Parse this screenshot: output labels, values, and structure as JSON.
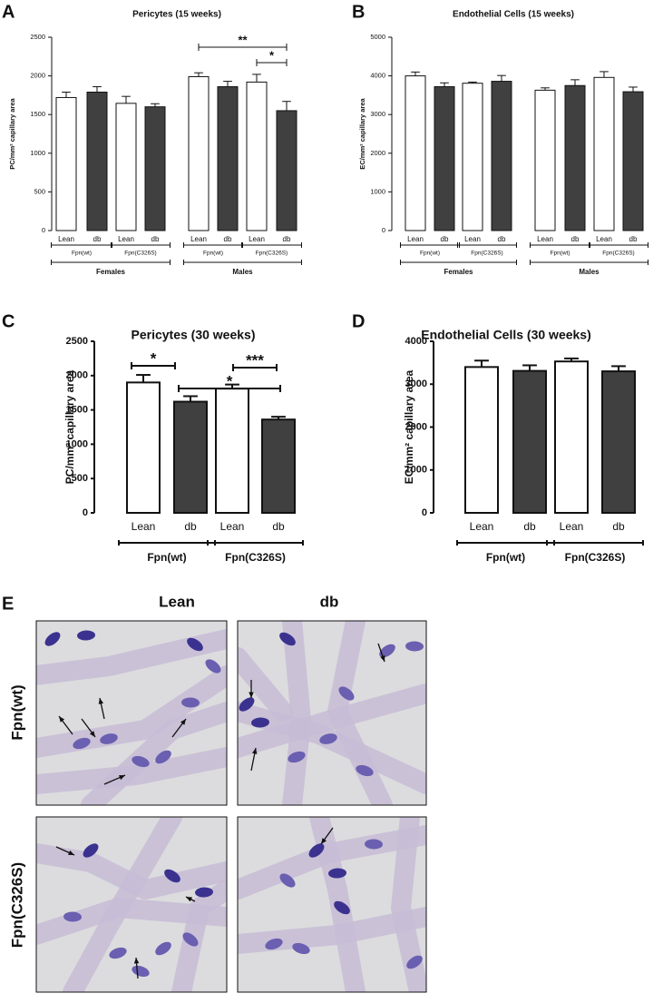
{
  "panels": [
    "A",
    "B",
    "C",
    "D",
    "E"
  ],
  "chart_data": [
    {
      "type": "bar",
      "title": "Pericytes (15 weeks)",
      "y_label": "PC/mm² capillary area",
      "categories": [
        "Lean",
        "db",
        "Lean",
        "db",
        "Lean",
        "db",
        "Lean",
        "db"
      ],
      "groups": [
        "Fpn(wt)",
        "Fpn(C326S)",
        "Fpn(wt)",
        "Fpn(C326S)"
      ],
      "supergroups": [
        "Females",
        "Males"
      ],
      "values": [
        1720,
        1790,
        1645,
        1600,
        1990,
        1860,
        1920,
        1550
      ],
      "errors": [
        70,
        70,
        90,
        40,
        50,
        70,
        100,
        120
      ],
      "bar_colors": [
        "#ffffff",
        "#404040",
        "#ffffff",
        "#404040",
        "#ffffff",
        "#404040",
        "#ffffff",
        "#404040"
      ],
      "ylim": [
        0,
        2500
      ],
      "yticks": [
        0,
        500,
        1000,
        1500,
        2000,
        2500
      ],
      "annotations": [
        "**",
        "*"
      ]
    },
    {
      "type": "bar",
      "title": "Endothelial  Cells (15 weeks)",
      "y_label": "EC/mm² capillary area",
      "categories": [
        "Lean",
        "db",
        "Lean",
        "db",
        "Lean",
        "db",
        "Lean",
        "db"
      ],
      "groups": [
        "Fpn(wt)",
        "Fpn(C326S)",
        "Fpn(wt)",
        "Fpn(C326S)"
      ],
      "supergroups": [
        "Females",
        "Males"
      ],
      "values": [
        4000,
        3720,
        3810,
        3860,
        3630,
        3750,
        3960,
        3590
      ],
      "errors": [
        100,
        100,
        30,
        150,
        60,
        150,
        150,
        120
      ],
      "bar_colors": [
        "#ffffff",
        "#404040",
        "#ffffff",
        "#404040",
        "#ffffff",
        "#404040",
        "#ffffff",
        "#404040"
      ],
      "ylim": [
        0,
        5000
      ],
      "yticks": [
        0,
        1000,
        2000,
        3000,
        4000,
        5000
      ],
      "annotations": []
    },
    {
      "type": "bar",
      "title": "Pericytes (30 weeks)",
      "y_label": "PC/mm² capillary area",
      "categories": [
        "Lean",
        "db",
        "Lean",
        "db"
      ],
      "groups": [
        "Fpn(wt)",
        "Fpn(C326S)"
      ],
      "values": [
        1900,
        1620,
        1810,
        1360
      ],
      "errors": [
        110,
        80,
        60,
        40
      ],
      "bar_colors": [
        "#ffffff",
        "#404040",
        "#ffffff",
        "#404040"
      ],
      "ylim": [
        0,
        2500
      ],
      "yticks": [
        0,
        500,
        1000,
        1500,
        2000,
        2500
      ],
      "annotations": [
        "*",
        "***",
        "*"
      ]
    },
    {
      "type": "bar",
      "title": "Endothelial Cells (30 weeks)",
      "y_label": "EC/mm² capillary area",
      "categories": [
        "Lean",
        "db",
        "Lean",
        "db"
      ],
      "groups": [
        "Fpn(wt)",
        "Fpn(C326S)"
      ],
      "values": [
        3400,
        3310,
        3530,
        3300
      ],
      "errors": [
        150,
        130,
        70,
        120
      ],
      "bar_colors": [
        "#ffffff",
        "#404040",
        "#ffffff",
        "#404040"
      ],
      "ylim": [
        0,
        4000
      ],
      "yticks": [
        0,
        1000,
        2000,
        3000,
        4000
      ],
      "annotations": []
    }
  ],
  "micrographs": {
    "columns": [
      "Lean",
      "db"
    ],
    "rows": [
      "Fpn(wt)",
      "Fpn(C326S)"
    ]
  }
}
